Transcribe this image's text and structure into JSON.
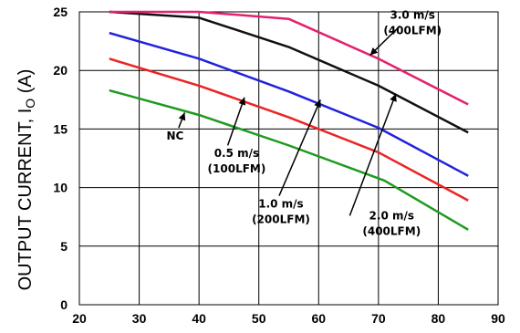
{
  "chart_data": {
    "type": "line",
    "title": "",
    "xlabel": "",
    "ylabel": "OUTPUT CURRENT, I",
    "ylabel_sub": "O",
    "ylabel_unit": " (A)",
    "xlim": [
      20,
      90
    ],
    "ylim": [
      0,
      25
    ],
    "xticks": [
      20,
      30,
      40,
      50,
      60,
      70,
      80,
      90
    ],
    "yticks": [
      0,
      5,
      10,
      15,
      20,
      25
    ],
    "grid": true,
    "series": [
      {
        "name": "NC",
        "color": "#1e9a1e",
        "x": [
          25,
          40,
          55,
          71,
          85
        ],
        "y": [
          18.3,
          16.2,
          13.6,
          10.6,
          6.4
        ]
      },
      {
        "name": "0.5 m/s (100LFM)",
        "color": "#ee2222",
        "x": [
          25,
          40,
          55,
          70,
          85
        ],
        "y": [
          21.0,
          18.7,
          16.0,
          13.0,
          8.9
        ]
      },
      {
        "name": "1.0 m/s (200LFM)",
        "color": "#2222dd",
        "x": [
          25,
          40,
          55,
          70,
          85
        ],
        "y": [
          23.2,
          21.0,
          18.2,
          15.1,
          11.0
        ]
      },
      {
        "name": "2.0 m/s (400LFM)",
        "color": "#111111",
        "x": [
          25,
          40,
          55,
          70,
          85
        ],
        "y": [
          25.0,
          24.5,
          22.0,
          18.7,
          14.7
        ]
      },
      {
        "name": "3.0 m/s (400LFM)",
        "color": "#e5206e",
        "x": [
          25,
          40,
          55,
          70,
          85
        ],
        "y": [
          25.0,
          25.0,
          24.4,
          21.0,
          17.1
        ]
      }
    ],
    "annotations": [
      {
        "lines": [
          "NC"
        ],
        "text_x": 36,
        "text_y": 14.1,
        "arrow_from": [
          36.6,
          15.1
        ],
        "arrow_to": [
          37.6,
          16.4
        ]
      },
      {
        "lines": [
          "0.5 m/s",
          "(100LFM)"
        ],
        "text_x": 46.3,
        "text_y": 12.6,
        "arrow_from": [
          44.8,
          13.6
        ],
        "arrow_to": [
          47.6,
          17.7
        ]
      },
      {
        "lines": [
          "1.0 m/s",
          "(200LFM)"
        ],
        "text_x": 53.7,
        "text_y": 8.3,
        "arrow_from": [
          53.4,
          9.3
        ],
        "arrow_to": [
          60.3,
          17.5
        ]
      },
      {
        "lines": [
          "2.0 m/s",
          "(400LFM)"
        ],
        "text_x": 72.2,
        "text_y": 7.3,
        "arrow_from": [
          65.2,
          7.6
        ],
        "arrow_to": [
          72.9,
          18.0
        ]
      },
      {
        "lines": [
          "3.0 m/s",
          "(400LFM)"
        ],
        "text_x": 75.7,
        "text_y": 24.4,
        "arrow_from": [
          73.6,
          23.8
        ],
        "arrow_to": [
          68.6,
          21.3
        ]
      }
    ]
  }
}
